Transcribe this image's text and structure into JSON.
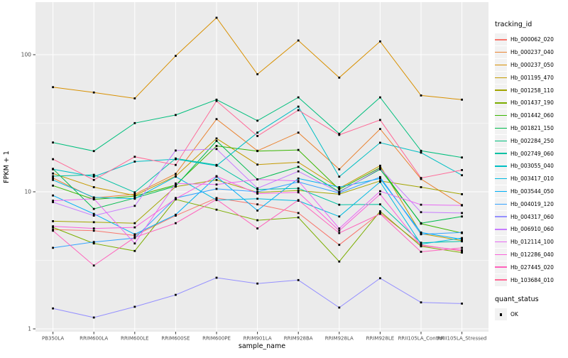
{
  "chart_data": {
    "type": "line",
    "title": "",
    "xlabel": "sample_name",
    "ylabel": "FPKM + 1",
    "y_scale": "log10",
    "ylim": [
      0.95,
      235
    ],
    "grid": true,
    "panel_bg": "#EBEBEB",
    "grid_color": "#FFFFFF",
    "point_shape": "filled-square",
    "point_color": "#000000",
    "axis_text_color": "#4D4D4D",
    "y_ticks": [
      "1",
      "10",
      "100"
    ],
    "y_tick_values": [
      1,
      10,
      100
    ],
    "y_minor_values": [
      3.162,
      31.62
    ],
    "categories": [
      "PB350LA",
      "RRIM600LA",
      "RRIM600LE",
      "RRIM600SE",
      "RRIM600PE",
      "RRIM901LA",
      "RRIM928BA",
      "RRIM928LA",
      "RRIM928LE",
      "RRII105LA_Control",
      "RRII105LA_Stressed"
    ],
    "series": [
      {
        "name": "Hb_000062_020",
        "color": "#F8766D",
        "values": [
          5.3,
          5.2,
          4.8,
          6.7,
          9.0,
          8.1,
          7.0,
          4.1,
          7.0,
          4.1,
          3.7
        ]
      },
      {
        "name": "Hb_000237_040",
        "color": "#EA8331",
        "values": [
          12.6,
          9.0,
          9.6,
          13.5,
          33.9,
          19.9,
          27.0,
          14.6,
          28.7,
          12.4,
          8.0
        ]
      },
      {
        "name": "Hb_000237_050",
        "color": "#D89000",
        "values": [
          58,
          53,
          48,
          98,
          186,
          72,
          127,
          68,
          125,
          50.4,
          47
        ]
      },
      {
        "name": "Hb_001195_470",
        "color": "#C49A00",
        "values": [
          13.6,
          10.8,
          9.4,
          13.0,
          24.5,
          15.8,
          16.4,
          10.6,
          15.5,
          4.95,
          4.4
        ]
      },
      {
        "name": "Hb_001258_110",
        "color": "#A3A500",
        "values": [
          6.1,
          6.0,
          5.9,
          10.9,
          12.2,
          9.9,
          10.2,
          9.6,
          12.0,
          10.8,
          9.6
        ]
      },
      {
        "name": "Hb_001437_190",
        "color": "#7CAE00",
        "values": [
          5.5,
          4.2,
          3.7,
          8.8,
          7.4,
          6.2,
          6.5,
          3.1,
          7.2,
          4.0,
          3.6
        ]
      },
      {
        "name": "Hb_001442_060",
        "color": "#39B600",
        "values": [
          11.1,
          8.8,
          9.3,
          11.2,
          21.6,
          19.8,
          20.2,
          10.4,
          15.0,
          5.85,
          5.0
        ]
      },
      {
        "name": "Hb_001821_150",
        "color": "#00BB4E",
        "values": [
          14.7,
          7.5,
          9.0,
          11.0,
          23.5,
          12.3,
          15.2,
          10.0,
          14.6,
          5.9,
          6.6
        ]
      },
      {
        "name": "Hb_002284_250",
        "color": "#00BF7D",
        "values": [
          22.9,
          19.8,
          31.7,
          36.3,
          47,
          33,
          48.8,
          26.5,
          48.8,
          19.9,
          17.8
        ]
      },
      {
        "name": "Hb_002749_060",
        "color": "#00C1A3",
        "values": [
          13.0,
          13.3,
          9.9,
          17.5,
          15.7,
          10.4,
          10.6,
          8.05,
          8.1,
          4.25,
          4.35
        ]
      },
      {
        "name": "Hb_003055_040",
        "color": "#00BFC4",
        "values": [
          14.6,
          12.9,
          16.6,
          17.3,
          15.5,
          27,
          41.8,
          12.9,
          22.8,
          19.3,
          13.2
        ]
      },
      {
        "name": "Hb_003417_010",
        "color": "#00BAE0",
        "values": [
          12.2,
          9.1,
          8.9,
          12.9,
          8.7,
          8.9,
          8.6,
          6.6,
          11.8,
          4.15,
          4.6
        ]
      },
      {
        "name": "Hb_003544_050",
        "color": "#00B0F6",
        "values": [
          9.4,
          6.9,
          4.9,
          6.8,
          12.9,
          7.3,
          12.5,
          10.8,
          12.5,
          5.05,
          4.5
        ]
      },
      {
        "name": "Hb_004019_120",
        "color": "#35A2FF",
        "values": [
          3.9,
          4.3,
          4.6,
          9.0,
          10.5,
          10.0,
          11.8,
          9.8,
          12.8,
          4.9,
          5.05
        ]
      },
      {
        "name": "Hb_004317_060",
        "color": "#9590FF",
        "values": [
          1.41,
          1.21,
          1.45,
          1.77,
          2.36,
          2.14,
          2.27,
          1.43,
          2.34,
          1.56,
          1.53
        ]
      },
      {
        "name": "Hb_006910_060",
        "color": "#C77CFF",
        "values": [
          8.4,
          6.7,
          7.9,
          20,
          20.5,
          10.6,
          14.1,
          9.9,
          14.8,
          7.1,
          7.0
        ]
      },
      {
        "name": "Hb_012114_100",
        "color": "#E76BF3",
        "values": [
          8.6,
          8.9,
          4.2,
          11.5,
          11.3,
          12.3,
          12.0,
          5.4,
          10.1,
          8.05,
          7.95
        ]
      },
      {
        "name": "Hb_012286_040",
        "color": "#FA62DB",
        "values": [
          5.6,
          5.4,
          5.5,
          8.9,
          13.0,
          9.7,
          9.9,
          5.2,
          9.6,
          4.05,
          3.75
        ]
      },
      {
        "name": "Hb_027445_020",
        "color": "#FF62BC",
        "values": [
          5.2,
          2.9,
          4.65,
          5.9,
          8.8,
          5.4,
          8.7,
          5.0,
          6.9,
          3.65,
          3.9
        ]
      },
      {
        "name": "Hb_103684_010",
        "color": "#FF6A98",
        "values": [
          17.3,
          12.2,
          18,
          15.7,
          46,
          25.5,
          39.4,
          26.0,
          33.4,
          12.6,
          14.4
        ]
      }
    ]
  },
  "legend": {
    "tracking_title": "tracking_id",
    "quant_title": "quant_status",
    "quant_items": [
      {
        "label": "OK"
      }
    ],
    "key_bg": "#F2F2F2"
  }
}
